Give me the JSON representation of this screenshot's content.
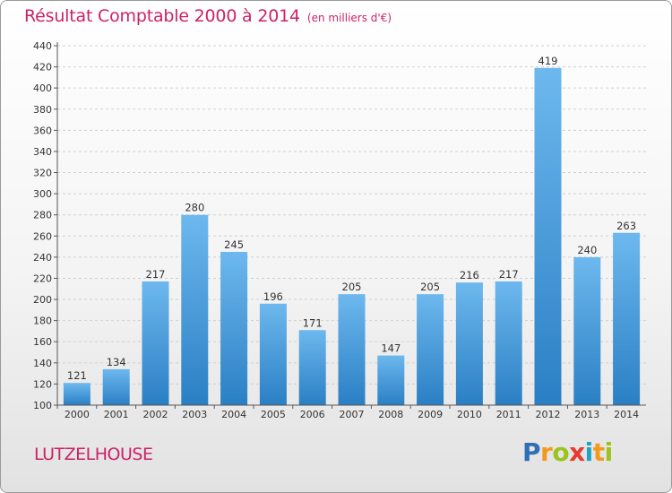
{
  "header": {
    "title": "Résultat Comptable 2000 à 2014",
    "unit": "(en milliers d'€)"
  },
  "footer": {
    "commune": "LUTZELHOUSE",
    "brand": [
      "P",
      "r",
      "o",
      "x",
      "i",
      "t",
      "i"
    ]
  },
  "colors": {
    "title": "#cc2266",
    "bar_light": "#6db8ee",
    "bar_dark": "#2a7fc4",
    "brand": [
      "#2f6fb6",
      "#f39a1e",
      "#9bc31c",
      "#e83a30",
      "#1fa3c7",
      "#f39a1e",
      "#9bc31c"
    ]
  },
  "chart_data": {
    "type": "bar",
    "title": "Résultat Comptable 2000 à 2014",
    "subtitle": "(en milliers d'€)",
    "categories": [
      "2000",
      "2001",
      "2002",
      "2003",
      "2004",
      "2005",
      "2006",
      "2007",
      "2008",
      "2009",
      "2010",
      "2011",
      "2012",
      "2013",
      "2014"
    ],
    "values": [
      121,
      134,
      217,
      280,
      245,
      196,
      171,
      205,
      147,
      205,
      216,
      217,
      419,
      240,
      263
    ],
    "ylim": [
      100,
      440
    ],
    "yticks": [
      100,
      120,
      140,
      160,
      180,
      200,
      220,
      240,
      260,
      280,
      300,
      320,
      340,
      360,
      380,
      400,
      420,
      440
    ],
    "grid": true,
    "data_labels": true
  }
}
